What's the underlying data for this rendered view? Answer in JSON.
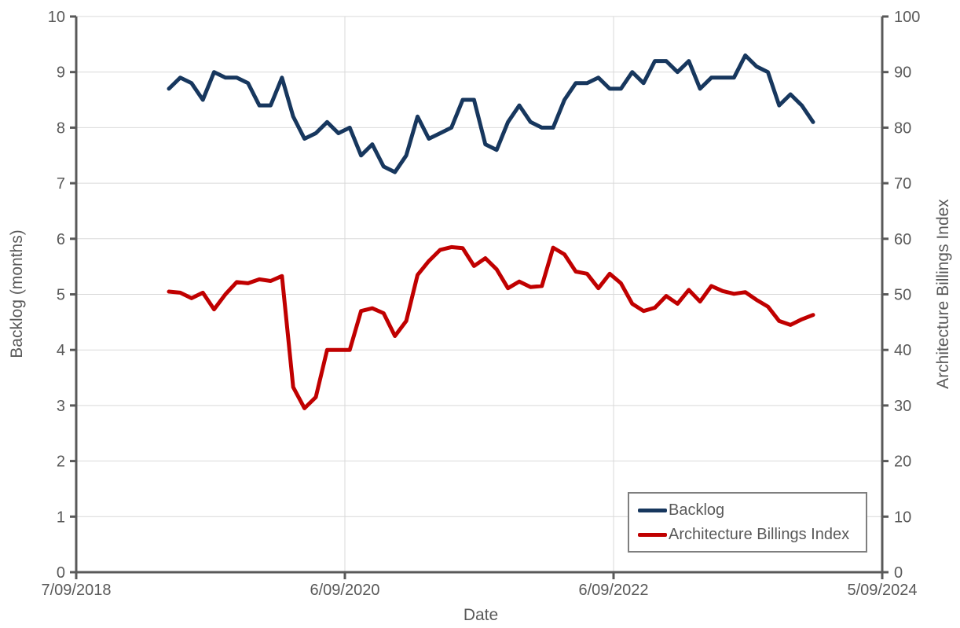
{
  "chart_data": {
    "type": "line",
    "title": "",
    "x_axis_title": "Date",
    "left_axis": {
      "title": "Backlog (months)",
      "min": 0,
      "max": 10,
      "tick_labels": [
        "10",
        "9",
        "8",
        "7",
        "6",
        "5",
        "4",
        "3",
        "2",
        "1",
        "0"
      ]
    },
    "right_axis": {
      "title": "Architecture Billings Index",
      "min": 0,
      "max": 100,
      "tick_labels": [
        "100",
        "90",
        "80",
        "70",
        "60",
        "50",
        "40",
        "30",
        "20",
        "10",
        "0"
      ]
    },
    "x_tick_labels": [
      "7/09/2018",
      "6/09/2020",
      "6/09/2022",
      "5/09/2024"
    ],
    "grid": true,
    "legend_position": "inside-bottom-right",
    "categories": [
      "2019-05",
      "2019-06",
      "2019-07",
      "2019-08",
      "2019-09",
      "2019-10",
      "2019-11",
      "2019-12",
      "2020-01",
      "2020-02",
      "2020-03",
      "2020-04",
      "2020-05",
      "2020-06",
      "2020-07",
      "2020-08",
      "2020-09",
      "2020-10",
      "2020-11",
      "2020-12",
      "2021-01",
      "2021-02",
      "2021-03",
      "2021-04",
      "2021-05",
      "2021-06",
      "2021-07",
      "2021-08",
      "2021-09",
      "2021-10",
      "2021-11",
      "2021-12",
      "2022-01",
      "2022-02",
      "2022-03",
      "2022-04",
      "2022-05",
      "2022-06",
      "2022-07",
      "2022-08",
      "2022-09",
      "2022-10",
      "2022-11",
      "2022-12",
      "2023-01",
      "2023-02",
      "2023-03",
      "2023-04",
      "2023-05",
      "2023-06",
      "2023-07",
      "2023-08",
      "2023-09",
      "2023-10",
      "2023-11",
      "2023-12",
      "2024-01",
      "2024-02"
    ],
    "series": [
      {
        "name": "Backlog",
        "axis": "left",
        "color": "#17375E",
        "values": [
          8.7,
          8.9,
          8.8,
          8.5,
          9.0,
          8.9,
          8.9,
          8.8,
          8.4,
          8.4,
          8.9,
          8.2,
          7.8,
          7.9,
          8.1,
          7.9,
          8.0,
          7.5,
          7.7,
          7.3,
          7.2,
          7.5,
          8.2,
          7.8,
          7.9,
          8.0,
          8.5,
          8.5,
          7.7,
          7.6,
          8.1,
          8.4,
          8.1,
          8.0,
          8.0,
          8.5,
          8.8,
          8.8,
          8.9,
          8.7,
          8.7,
          9.0,
          8.8,
          9.2,
          9.2,
          9.0,
          9.2,
          8.7,
          8.9,
          8.9,
          8.9,
          9.3,
          9.1,
          9.0,
          8.4,
          8.6,
          8.4,
          8.1
        ]
      },
      {
        "name": "Architecture Billings Index",
        "axis": "right",
        "color": "#C00000",
        "values": [
          50.5,
          50.3,
          49.3,
          50.3,
          47.3,
          50.0,
          52.2,
          52.0,
          52.7,
          52.4,
          53.3,
          33.3,
          29.5,
          31.5,
          40.0,
          40.0,
          40.0,
          47.0,
          47.5,
          46.6,
          42.5,
          45.2,
          53.5,
          56.0,
          58.0,
          58.5,
          58.3,
          55.1,
          56.5,
          54.5,
          51.1,
          52.3,
          51.3,
          51.5,
          58.4,
          57.2,
          54.1,
          53.7,
          51.1,
          53.7,
          52.0,
          48.3,
          47.0,
          47.6,
          49.7,
          48.3,
          50.8,
          48.7,
          51.5,
          50.6,
          50.1,
          50.4,
          49.0,
          47.8,
          45.2,
          44.5,
          45.5,
          46.3
        ]
      }
    ],
    "legend": [
      {
        "label": "Backlog",
        "color": "#17375E"
      },
      {
        "label": "Architecture Billings Index",
        "color": "#C00000"
      }
    ],
    "colors": {
      "axis_line": "#595959",
      "gridline": "#D9D9D9",
      "tick_text": "#595959",
      "legend_border": "#7F7F7F",
      "background": "#FFFFFF"
    }
  }
}
